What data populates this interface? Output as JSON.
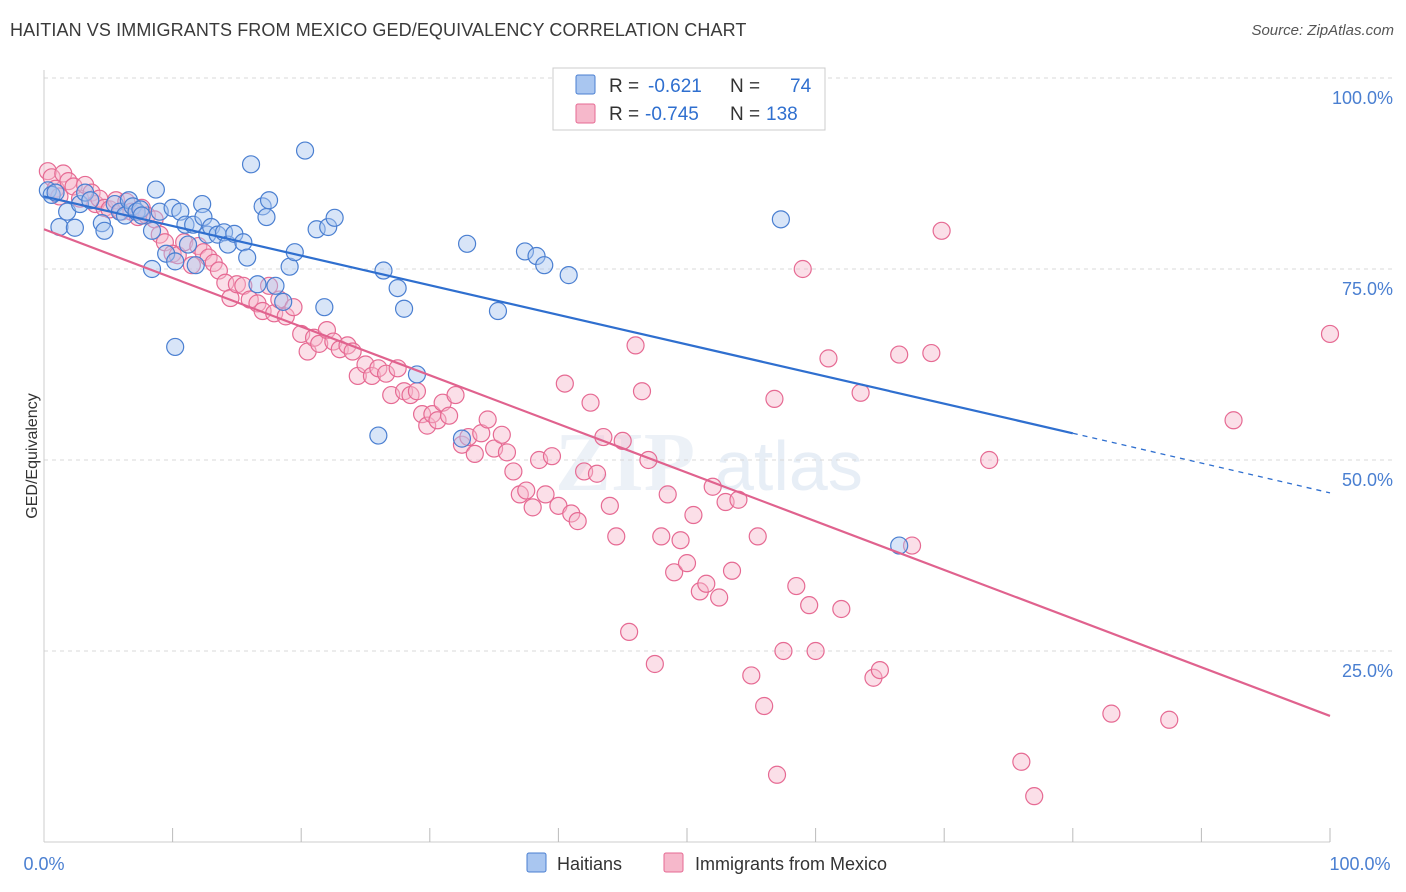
{
  "title": "HAITIAN VS IMMIGRANTS FROM MEXICO GED/EQUIVALENCY CORRELATION CHART",
  "source": "Source: ZipAtlas.com",
  "watermark": {
    "zip": "ZIP",
    "atlas": "atlas"
  },
  "legend": {
    "rows": [
      {
        "r_label": "R =",
        "r_value": "-0.621",
        "n_label": "N =",
        "n_value": "74"
      },
      {
        "r_label": "R =",
        "r_value": "-0.745",
        "n_label": "N =",
        "n_value": "138"
      }
    ]
  },
  "bottom_legend": [
    "Haitians",
    "Immigrants from Mexico"
  ],
  "colors": {
    "blue": "#4a7fd1",
    "blue_fill": "#a9c6f0",
    "blue_line": "#2f6fcf",
    "pink": "#e66a93",
    "pink_fill": "#f6b8cb",
    "pink_line": "#e0628e",
    "grid": "#d8d8d8"
  },
  "chart_data": {
    "type": "scatter",
    "title": "HAITIAN VS IMMIGRANTS FROM MEXICO GED/EQUIVALENCY CORRELATION CHART",
    "xlabel": "",
    "ylabel": "GED/Equivalency",
    "xlim": [
      0,
      100
    ],
    "ylim": [
      0,
      100
    ],
    "x_tick_labels": [
      "0.0%",
      "100.0%"
    ],
    "y_tick_labels": [
      "100.0%",
      "75.0%",
      "50.0%",
      "25.0%"
    ],
    "y_ticks": [
      100,
      75,
      50,
      25
    ],
    "grid": true,
    "legend_placement": "top-center",
    "series": [
      {
        "name": "Haitians",
        "color": "#4a7fd1",
        "r": -0.621,
        "n": 74,
        "trend": {
          "x0": 0,
          "y0": 84.5,
          "x1": 80,
          "y1": 53.5,
          "dash_to": 100,
          "dash_y": 45.7
        },
        "points": [
          [
            0.3,
            85.3
          ],
          [
            0.6,
            84.7
          ],
          [
            0.9,
            85.0
          ],
          [
            1.2,
            80.5
          ],
          [
            1.8,
            82.5
          ],
          [
            2.4,
            80.4
          ],
          [
            2.8,
            83.5
          ],
          [
            3.2,
            85.0
          ],
          [
            3.6,
            84.0
          ],
          [
            4.5,
            81.0
          ],
          [
            4.7,
            80.0
          ],
          [
            5.5,
            83.5
          ],
          [
            5.9,
            82.5
          ],
          [
            6.3,
            82.0
          ],
          [
            6.6,
            84.0
          ],
          [
            6.9,
            83.2
          ],
          [
            7.2,
            82.5
          ],
          [
            7.5,
            82.8
          ],
          [
            7.6,
            82.0
          ],
          [
            8.4,
            80.0
          ],
          [
            8.4,
            75.0
          ],
          [
            8.7,
            85.4
          ],
          [
            9.0,
            82.5
          ],
          [
            9.5,
            77.0
          ],
          [
            10.0,
            83.0
          ],
          [
            10.2,
            76.0
          ],
          [
            10.2,
            64.8
          ],
          [
            10.6,
            82.5
          ],
          [
            11.0,
            80.8
          ],
          [
            11.2,
            78.2
          ],
          [
            11.6,
            80.8
          ],
          [
            11.8,
            75.5
          ],
          [
            12.3,
            83.5
          ],
          [
            12.4,
            81.8
          ],
          [
            12.7,
            79.5
          ],
          [
            13.0,
            80.5
          ],
          [
            13.5,
            79.5
          ],
          [
            14.0,
            79.8
          ],
          [
            14.3,
            78.2
          ],
          [
            14.8,
            79.6
          ],
          [
            15.5,
            78.5
          ],
          [
            15.8,
            76.5
          ],
          [
            16.1,
            88.7
          ],
          [
            16.6,
            73.0
          ],
          [
            17.0,
            83.2
          ],
          [
            17.3,
            81.8
          ],
          [
            17.5,
            84.0
          ],
          [
            18.0,
            72.8
          ],
          [
            18.6,
            70.7
          ],
          [
            19.1,
            75.3
          ],
          [
            19.5,
            77.2
          ],
          [
            20.3,
            90.5
          ],
          [
            21.2,
            80.2
          ],
          [
            21.8,
            70.0
          ],
          [
            22.1,
            80.5
          ],
          [
            22.6,
            81.7
          ],
          [
            26.4,
            74.8
          ],
          [
            26.0,
            53.2
          ],
          [
            28.0,
            69.8
          ],
          [
            27.5,
            72.5
          ],
          [
            29.0,
            61.2
          ],
          [
            32.5,
            52.8
          ],
          [
            32.9,
            78.3
          ],
          [
            35.3,
            69.5
          ],
          [
            37.4,
            77.3
          ],
          [
            38.3,
            76.7
          ],
          [
            38.9,
            75.5
          ],
          [
            40.8,
            74.2
          ],
          [
            57.3,
            81.5
          ],
          [
            66.5,
            38.8
          ]
        ]
      },
      {
        "name": "Immigrants from Mexico",
        "color": "#e66a93",
        "r": -0.745,
        "n": 138,
        "trend": {
          "x0": 0,
          "y0": 80.2,
          "x1": 100,
          "y1": 16.5
        },
        "points": [
          [
            0.3,
            87.8
          ],
          [
            0.6,
            87.0
          ],
          [
            0.9,
            85.5
          ],
          [
            1.2,
            84.5
          ],
          [
            1.5,
            87.5
          ],
          [
            1.9,
            86.5
          ],
          [
            2.3,
            85.8
          ],
          [
            2.8,
            84.2
          ],
          [
            3.2,
            86.0
          ],
          [
            3.7,
            85.0
          ],
          [
            4.0,
            83.5
          ],
          [
            4.3,
            84.2
          ],
          [
            4.7,
            83.0
          ],
          [
            5.1,
            82.8
          ],
          [
            5.6,
            84.0
          ],
          [
            6.0,
            82.5
          ],
          [
            6.4,
            83.8
          ],
          [
            6.8,
            82.5
          ],
          [
            7.3,
            81.8
          ],
          [
            7.6,
            83.0
          ],
          [
            8.0,
            82.0
          ],
          [
            8.6,
            81.5
          ],
          [
            9.0,
            79.5
          ],
          [
            9.4,
            78.5
          ],
          [
            10.0,
            77.0
          ],
          [
            10.4,
            76.8
          ],
          [
            10.9,
            78.5
          ],
          [
            11.5,
            75.5
          ],
          [
            12.0,
            78.0
          ],
          [
            12.4,
            77.2
          ],
          [
            12.8,
            76.5
          ],
          [
            13.2,
            75.8
          ],
          [
            13.6,
            74.8
          ],
          [
            14.1,
            73.2
          ],
          [
            14.5,
            71.2
          ],
          [
            15.0,
            73.0
          ],
          [
            15.5,
            72.8
          ],
          [
            16.0,
            71.0
          ],
          [
            16.6,
            70.5
          ],
          [
            17.0,
            69.5
          ],
          [
            17.5,
            72.8
          ],
          [
            17.9,
            69.2
          ],
          [
            18.3,
            71.0
          ],
          [
            18.8,
            68.8
          ],
          [
            19.4,
            70.0
          ],
          [
            20.0,
            66.5
          ],
          [
            20.5,
            64.2
          ],
          [
            21.0,
            66.0
          ],
          [
            21.4,
            65.2
          ],
          [
            22.0,
            67.0
          ],
          [
            22.5,
            65.5
          ],
          [
            23.0,
            64.5
          ],
          [
            23.6,
            65.0
          ],
          [
            24.0,
            64.2
          ],
          [
            24.4,
            61.0
          ],
          [
            25.0,
            62.5
          ],
          [
            25.5,
            61.0
          ],
          [
            26.0,
            62.0
          ],
          [
            26.6,
            61.3
          ],
          [
            27.0,
            58.5
          ],
          [
            27.5,
            62.0
          ],
          [
            28.0,
            59.0
          ],
          [
            28.5,
            58.5
          ],
          [
            29.0,
            59.0
          ],
          [
            29.4,
            56.0
          ],
          [
            29.8,
            54.5
          ],
          [
            30.2,
            56.0
          ],
          [
            30.6,
            55.2
          ],
          [
            31.0,
            57.5
          ],
          [
            31.5,
            55.8
          ],
          [
            32.0,
            58.5
          ],
          [
            32.5,
            52.0
          ],
          [
            33.0,
            53.0
          ],
          [
            33.5,
            50.8
          ],
          [
            34.0,
            53.5
          ],
          [
            34.5,
            55.3
          ],
          [
            35.0,
            51.5
          ],
          [
            35.6,
            53.3
          ],
          [
            36.0,
            51.0
          ],
          [
            36.5,
            48.5
          ],
          [
            37.0,
            45.5
          ],
          [
            37.5,
            46.0
          ],
          [
            38.0,
            43.8
          ],
          [
            38.5,
            50.0
          ],
          [
            39.0,
            45.5
          ],
          [
            39.5,
            50.5
          ],
          [
            40.0,
            44.0
          ],
          [
            40.5,
            60.0
          ],
          [
            41.0,
            43.0
          ],
          [
            41.5,
            42.0
          ],
          [
            42.0,
            48.5
          ],
          [
            42.5,
            57.5
          ],
          [
            43.0,
            48.2
          ],
          [
            43.5,
            53.0
          ],
          [
            44.0,
            44.0
          ],
          [
            44.5,
            40.0
          ],
          [
            45.0,
            52.5
          ],
          [
            45.5,
            27.5
          ],
          [
            46.0,
            65.0
          ],
          [
            46.5,
            59.0
          ],
          [
            47.0,
            50.0
          ],
          [
            47.5,
            23.3
          ],
          [
            48.0,
            40.0
          ],
          [
            48.5,
            45.5
          ],
          [
            49.0,
            35.3
          ],
          [
            49.5,
            39.5
          ],
          [
            50.0,
            36.5
          ],
          [
            50.5,
            42.8
          ],
          [
            51.0,
            32.8
          ],
          [
            51.5,
            33.8
          ],
          [
            52.0,
            46.5
          ],
          [
            52.5,
            32.0
          ],
          [
            53.0,
            44.5
          ],
          [
            53.5,
            35.5
          ],
          [
            54.0,
            44.8
          ],
          [
            55.0,
            21.8
          ],
          [
            55.5,
            40.0
          ],
          [
            56.0,
            17.8
          ],
          [
            56.8,
            58.0
          ],
          [
            57.0,
            8.8
          ],
          [
            57.5,
            25.0
          ],
          [
            58.5,
            33.5
          ],
          [
            59.0,
            75.0
          ],
          [
            59.5,
            31.0
          ],
          [
            60.0,
            25.0
          ],
          [
            61.0,
            63.3
          ],
          [
            62.0,
            30.5
          ],
          [
            63.5,
            58.8
          ],
          [
            64.5,
            21.5
          ],
          [
            65.0,
            22.5
          ],
          [
            66.5,
            63.8
          ],
          [
            67.5,
            38.8
          ],
          [
            69.0,
            64.0
          ],
          [
            69.8,
            80.0
          ],
          [
            73.5,
            50.0
          ],
          [
            76.0,
            10.5
          ],
          [
            77.0,
            6.0
          ],
          [
            83.0,
            16.8
          ],
          [
            87.5,
            16.0
          ],
          [
            92.5,
            55.2
          ],
          [
            100.0,
            66.5
          ]
        ]
      }
    ]
  }
}
